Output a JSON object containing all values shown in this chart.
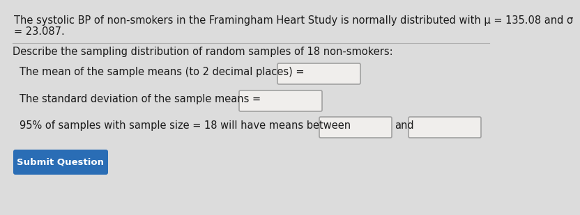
{
  "background_color": "#dcdcdc",
  "line1": "The systolic BP of non-smokers in the Framingham Heart Study is normally distributed with μ = 135.08 and σ",
  "line2": "= 23.087.",
  "line3": "Describe the sampling distribution of random samples of 18 non-smokers:",
  "line4": "The mean of the sample means (to 2 decimal places) =",
  "line5": "The standard deviation of the sample means =",
  "line6": "95% of samples with sample size = 18 will have means between",
  "line6b": "and",
  "button_text": "Submit Question",
  "button_color": "#2a6db5",
  "button_text_color": "#ffffff",
  "text_color": "#1a1a1a",
  "box_facecolor": "#f0eeec",
  "box_edgecolor": "#a0a0a0",
  "separator_color": "#b0b0b0",
  "font_size": 10.5
}
